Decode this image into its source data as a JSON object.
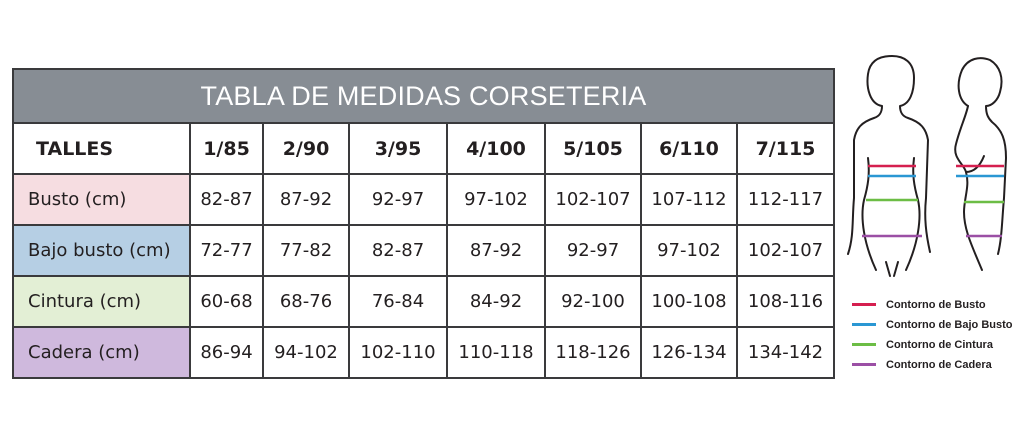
{
  "table": {
    "title": "TABLA DE MEDIDAS CORSETERIA",
    "header": [
      "TALLES",
      "1/85",
      "2/90",
      "3/95",
      "4/100",
      "5/105",
      "6/110",
      "7/115"
    ],
    "rows": [
      {
        "label": "Busto (cm)",
        "color": "#f6dde1",
        "values": [
          "82-87",
          "87-92",
          "92-97",
          "97-102",
          "102-107",
          "107-112",
          "112-117"
        ]
      },
      {
        "label": "Bajo busto (cm)",
        "color": "#b6cfe4",
        "values": [
          "72-77",
          "77-82",
          "82-87",
          "87-92",
          "92-97",
          "97-102",
          "102-107"
        ]
      },
      {
        "label": "Cintura (cm)",
        "color": "#e3efd5",
        "values": [
          "60-68",
          "68-76",
          "76-84",
          "84-92",
          "92-100",
          "100-108",
          "108-116"
        ]
      },
      {
        "label": "Cadera (cm)",
        "color": "#cfb9dd",
        "values": [
          "86-94",
          "94-102",
          "102-110",
          "110-118",
          "118-126",
          "126-134",
          "134-142"
        ]
      }
    ]
  },
  "legend": [
    {
      "label": "Contorno de Busto",
      "color": "#d51f4f"
    },
    {
      "label": "Contorno de Bajo Busto",
      "color": "#2a97d3"
    },
    {
      "label": "Contorno de Cintura",
      "color": "#6cbd45"
    },
    {
      "label": "Contorno de Cadera",
      "color": "#9b4fa5"
    }
  ],
  "illustration": {
    "icon": "body-silhouette-front-and-side-icon"
  }
}
